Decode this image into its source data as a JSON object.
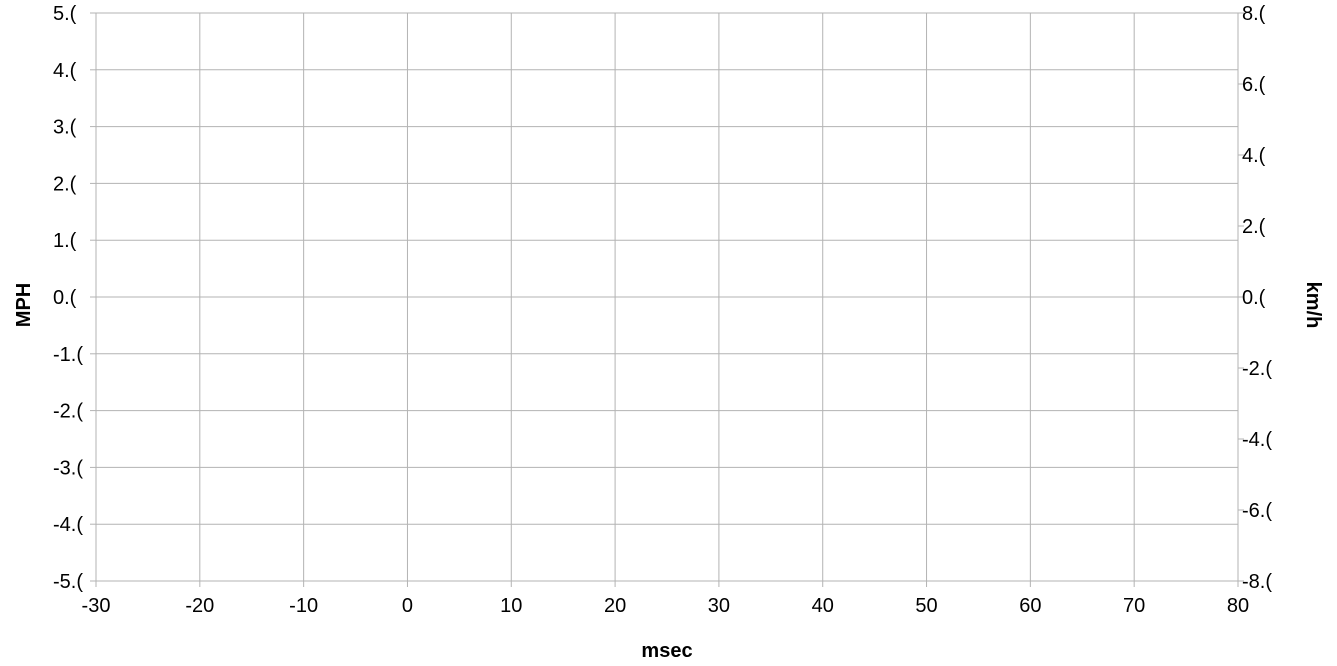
{
  "chart_data": {
    "type": "line",
    "title": "",
    "xlabel": "msec",
    "ylabel": "MPH",
    "y2label": "km/h",
    "xlim": [
      -30,
      80
    ],
    "ylim": [
      -5,
      5
    ],
    "y2lim": [
      -8,
      8
    ],
    "x_ticks": [
      "-30",
      "-20",
      "-10",
      "0",
      "10",
      "20",
      "30",
      "40",
      "50",
      "60",
      "70",
      "80"
    ],
    "y_ticks": [
      "5.(",
      "4.(",
      "3.(",
      "2.(",
      "1.(",
      "0.(",
      "-1.(",
      "-2.(",
      "-3.(",
      "-4.(",
      "-5.("
    ],
    "y2_ticks": [
      "8.(",
      "6.(",
      "4.(",
      "2.(",
      "0.(",
      "-2.(",
      "-4.(",
      "-6.(",
      "-8.("
    ],
    "grid": true,
    "series": [],
    "colors": {
      "grid": "#b3b3b3",
      "axis": "#b3b3b3",
      "background": "#ffffff"
    }
  }
}
